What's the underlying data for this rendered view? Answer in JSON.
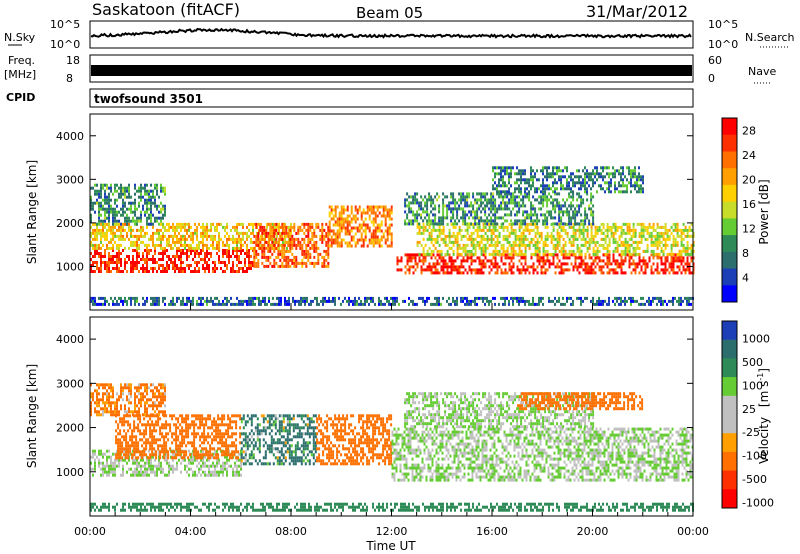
{
  "header": {
    "station": "Saskatoon (fitACF)",
    "beam": "Beam 05",
    "date": "31/Mar/2012"
  },
  "strip_nsky": {
    "left_label": "N.Sky",
    "left_tick_top": "10^5",
    "left_tick_bottom": "10^0",
    "right_label": "N.Search",
    "right_tick_top": "10^5",
    "right_tick_bottom": "10^0"
  },
  "strip_freq": {
    "left_label_line1": "Freq.",
    "left_label_line2": "[MHz]",
    "left_tick_top": "18",
    "left_tick_bottom": "8",
    "right_label": "Nave",
    "right_tick_top": "60",
    "right_tick_bottom": "0"
  },
  "strip_cpid": {
    "label": "CPID",
    "program": "twofsound 3501"
  },
  "colors": {
    "power_scale": [
      "#0000ff",
      "#1c3fb8",
      "#2c6e6e",
      "#2e8b57",
      "#66cc33",
      "#c8dc2a",
      "#ffd000",
      "#ffa000",
      "#ff7000",
      "#ff3000",
      "#ff0000"
    ],
    "velocity_scale": [
      "#1c3fb8",
      "#2c6e6e",
      "#2e8b57",
      "#66cc33",
      "#c0c0c0",
      "#c0c0c0",
      "#ffa000",
      "#ff7000",
      "#ff3000",
      "#ff0000"
    ]
  },
  "chart_data": [
    {
      "type": "heatmap",
      "panel": "power",
      "title": "",
      "xlabel": "",
      "ylabel": "Slant Range [km]",
      "xlim_hours": [
        0,
        24
      ],
      "ylim_km": [
        0,
        4500
      ],
      "y_ticks": [
        "1000",
        "2000",
        "3000",
        "4000"
      ],
      "colorbar": {
        "label": "Power [dB]",
        "range": [
          0,
          30
        ],
        "ticks": [
          "28",
          "24",
          "20",
          "16",
          "12",
          "8",
          "4"
        ]
      },
      "bands": [
        {
          "t0": 0.0,
          "t1": 6.5,
          "r0": 900,
          "r1": 1400,
          "value": 27
        },
        {
          "t0": 0.0,
          "t1": 8.0,
          "r0": 1400,
          "r1": 2000,
          "value": 18
        },
        {
          "t0": 0.0,
          "t1": 3.0,
          "r0": 2000,
          "r1": 2900,
          "value": 9
        },
        {
          "t0": 6.5,
          "t1": 9.5,
          "r0": 1000,
          "r1": 2000,
          "value": 24
        },
        {
          "t0": 9.5,
          "t1": 12.0,
          "r0": 1500,
          "r1": 2400,
          "value": 22
        },
        {
          "t0": 12.2,
          "t1": 24.0,
          "r0": 850,
          "r1": 1300,
          "value": 27
        },
        {
          "t0": 13.0,
          "t1": 24.0,
          "r0": 1300,
          "r1": 2000,
          "value": 16
        },
        {
          "t0": 12.5,
          "t1": 20.0,
          "r0": 2000,
          "r1": 2700,
          "value": 9
        },
        {
          "t0": 16.0,
          "t1": 22.0,
          "r0": 2700,
          "r1": 3300,
          "value": 8
        },
        {
          "t0": 0.0,
          "t1": 24.0,
          "r0": 100,
          "r1": 300,
          "value": 6
        }
      ]
    },
    {
      "type": "heatmap",
      "panel": "velocity",
      "title": "",
      "xlabel": "Time UT",
      "ylabel": "Slant Range [km]",
      "xlim_hours": [
        0,
        24
      ],
      "ylim_km": [
        0,
        4500
      ],
      "x_ticks": [
        "00:00",
        "04:00",
        "08:00",
        "12:00",
        "16:00",
        "20:00",
        "00:00"
      ],
      "y_ticks": [
        "1000",
        "2000",
        "3000",
        "4000"
      ],
      "colorbar": {
        "label": "Velocity [m s-1]",
        "label_main": "Velocity",
        "label_unit": "[m s",
        "label_exp": "-1",
        "label_close": "]",
        "ticks": [
          "1000",
          "500",
          "100",
          "25",
          "-25",
          "-100",
          "-500",
          "-1000"
        ]
      },
      "bands": [
        {
          "t0": 0.0,
          "t1": 6.0,
          "r0": 900,
          "r1": 1500,
          "value": 0
        },
        {
          "t0": 1.0,
          "t1": 6.0,
          "r0": 1300,
          "r1": 2300,
          "value": -300
        },
        {
          "t0": 0.0,
          "t1": 3.0,
          "r0": 2300,
          "r1": 3000,
          "value": -200
        },
        {
          "t0": 6.0,
          "t1": 9.0,
          "r0": 1200,
          "r1": 2300,
          "value": 150
        },
        {
          "t0": 9.0,
          "t1": 12.0,
          "r0": 1200,
          "r1": 2300,
          "value": -300
        },
        {
          "t0": 12.0,
          "t1": 24.0,
          "r0": 800,
          "r1": 2000,
          "value": 0
        },
        {
          "t0": 12.5,
          "t1": 20.0,
          "r0": 2000,
          "r1": 2800,
          "value": 0
        },
        {
          "t0": 17.0,
          "t1": 22.0,
          "r0": 2400,
          "r1": 2800,
          "value": -300
        },
        {
          "t0": 0.0,
          "t1": 24.0,
          "r0": 100,
          "r1": 300,
          "value": 50
        }
      ]
    }
  ]
}
